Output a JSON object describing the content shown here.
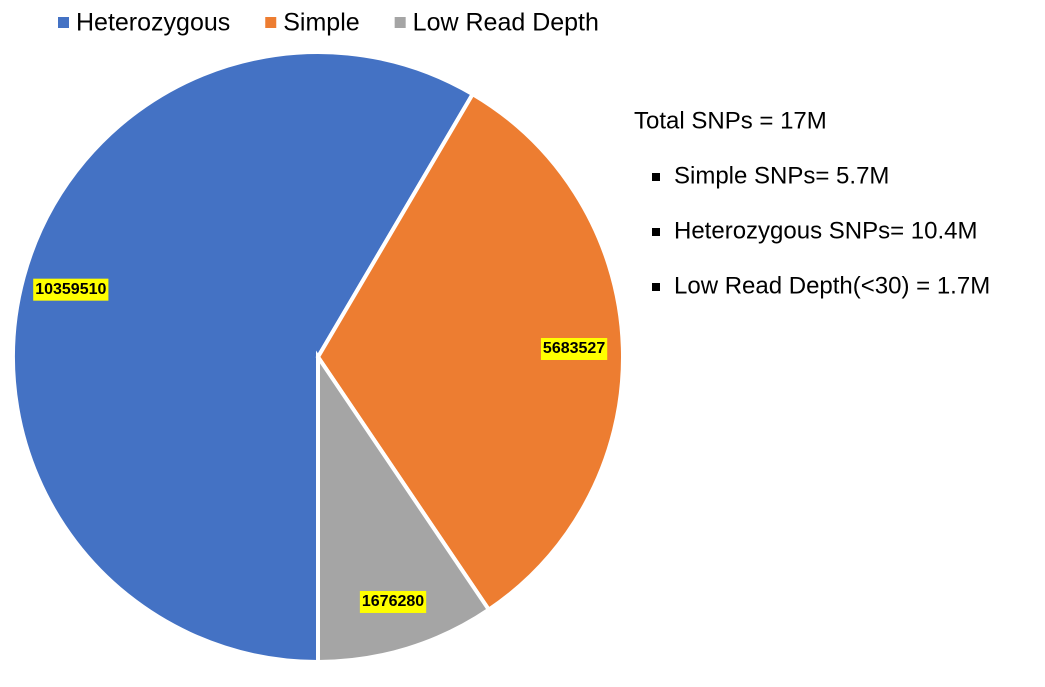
{
  "chart_data": {
    "type": "pie",
    "categories": [
      "Heterozygous",
      "Simple",
      "Low Read Depth"
    ],
    "values": [
      10359510,
      5683527,
      1676280
    ],
    "colors": [
      "#4472c4",
      "#ed7d31",
      "#a5a5a5"
    ],
    "start_angle": 180,
    "legend": "top",
    "annotations": {
      "title": "Total SNPs = 17M",
      "items": [
        "Simple SNPs= 5.7M",
        "Heterozygous SNPs= 10.4M",
        "Low Read Depth(<30) = 1.7M"
      ]
    }
  }
}
